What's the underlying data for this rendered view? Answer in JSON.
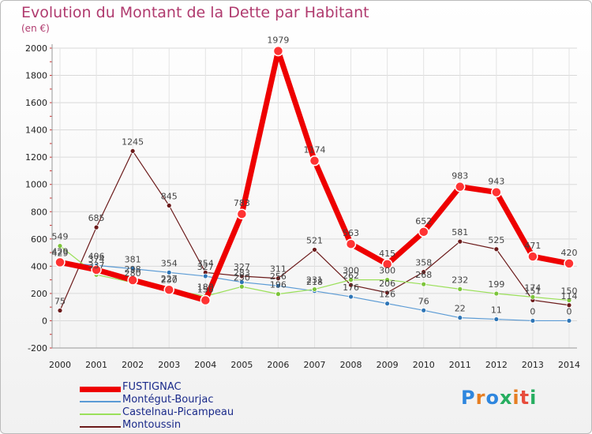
{
  "header": {
    "title": "Evolution du Montant de la Dette par Habitant",
    "subtitle": "(en €)"
  },
  "logo": {
    "text": "Proxiti",
    "colors": [
      "#2e86de",
      "#e67e22",
      "#2e86de",
      "#27ae60",
      "#e67e22",
      "#e74c3c",
      "#27ae60"
    ]
  },
  "chart_data": {
    "type": "line",
    "title": "Evolution du Montant de la Dette par Habitant",
    "ylabel": "(en €)",
    "ylim": [
      -200,
      2000
    ],
    "yticks": [
      -200,
      0,
      200,
      400,
      600,
      800,
      1000,
      1200,
      1400,
      1600,
      1800,
      2000
    ],
    "categories": [
      "2000",
      "2001",
      "2002",
      "2003",
      "2004",
      "2005",
      "2006",
      "2007",
      "2008",
      "2009",
      "2010",
      "2011",
      "2012",
      "2013",
      "2014"
    ],
    "legend_position": "bottom-left",
    "series": [
      {
        "name": "Montoussin",
        "color": "#6b1a1a",
        "marker": "#6b1a1a",
        "values": [
          75,
          685,
          1245,
          845,
          354,
          327,
          311,
          521,
          262,
          206,
          358,
          581,
          525,
          151,
          114
        ],
        "labels": [
          "75",
          "685",
          "1245",
          "845",
          "354",
          "327",
          "311",
          "521",
          "262",
          "206",
          "358",
          "581",
          "525",
          "151",
          "114"
        ]
      },
      {
        "name": "Montégut-Bourjac",
        "color": "#5b9bd5",
        "marker": "#2e75b6",
        "values": [
          429,
          406,
          381,
          354,
          327,
          283,
          256,
          218,
          176,
          126,
          76,
          22,
          11,
          0,
          0
        ],
        "labels": [
          "429",
          "406",
          "381",
          "354",
          "327",
          "283",
          "256",
          "218",
          "176",
          "126",
          "76",
          "22",
          "11",
          "0",
          "0"
        ]
      },
      {
        "name": "Castelnau-Picampeau",
        "color": "#9be05a",
        "marker": "#7cc43a",
        "values": [
          549,
          337,
          280,
          230,
          180,
          250,
          196,
          231,
          300,
          300,
          268,
          232,
          199,
          174,
          150
        ],
        "labels": [
          "549",
          "337",
          "280",
          "230",
          "180",
          "250",
          "196",
          "231",
          "300",
          "300",
          "268",
          "232",
          "199",
          "174",
          "150"
        ]
      },
      {
        "name": "FUSTIGNAC",
        "color": "#ee0000",
        "marker": "#ff3333",
        "values": [
          429,
          374,
          298,
          227,
          150,
          783,
          1979,
          1174,
          563,
          415,
          652,
          983,
          943,
          471,
          420
        ],
        "labels": [
          "429",
          "374",
          "298",
          "227",
          "150",
          "783",
          "1979",
          "1174",
          "563",
          "415",
          "652",
          "983",
          "943",
          "471",
          "420"
        ]
      }
    ]
  }
}
